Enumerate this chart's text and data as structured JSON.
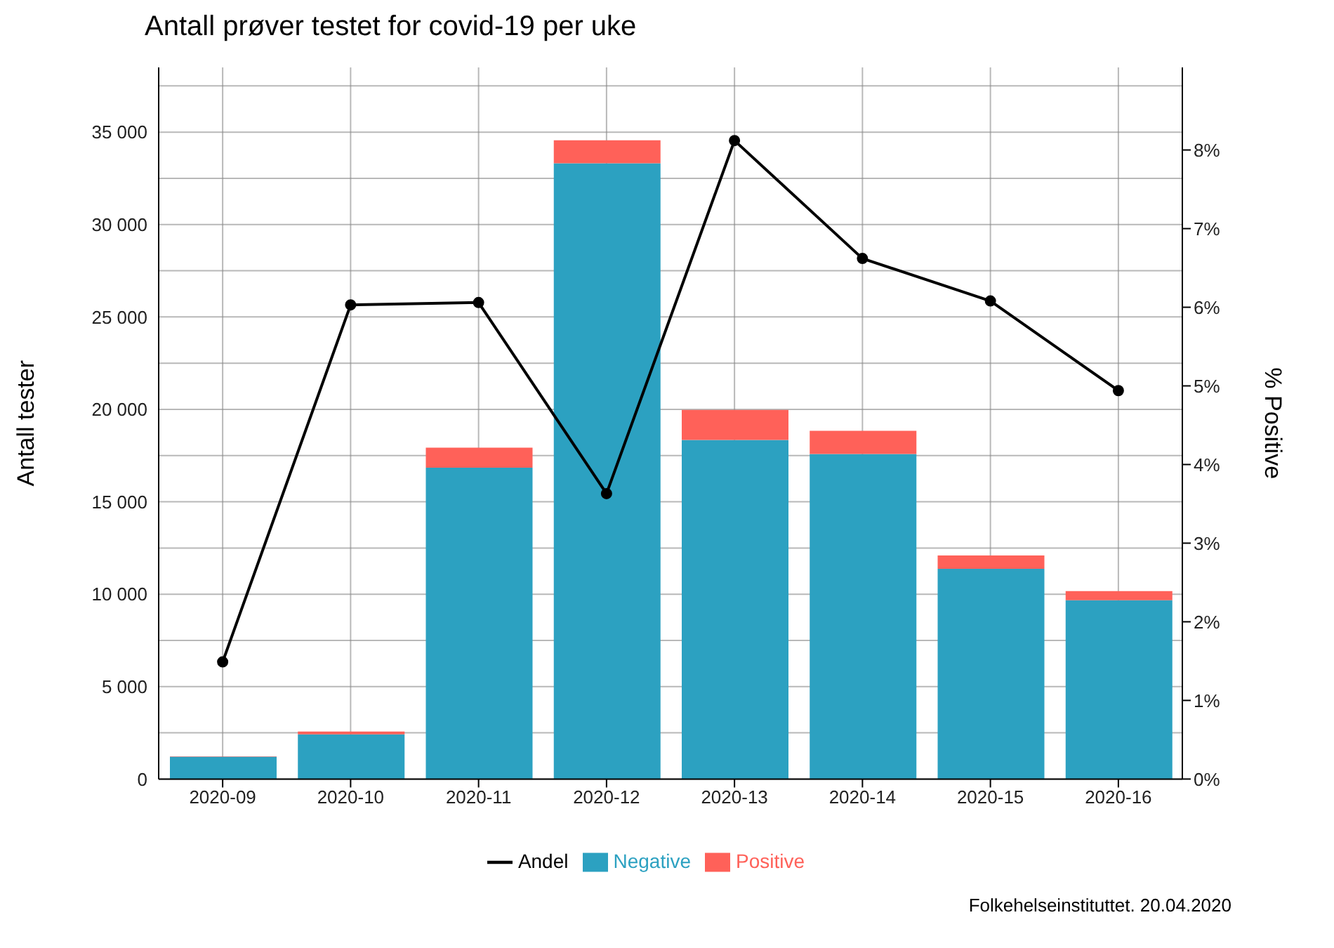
{
  "chart_data": {
    "type": "bar",
    "title": "Antall prøver testet for covid-19 per uke",
    "ylabel": "Antall tester",
    "y2label": "% Positive",
    "categories": [
      "2020-09",
      "2020-10",
      "2020-11",
      "2020-12",
      "2020-13",
      "2020-14",
      "2020-15",
      "2020-16"
    ],
    "stacked": true,
    "series": [
      {
        "name": "Negative",
        "color": "#2ca1c1",
        "values": [
          1210,
          2420,
          16850,
          33310,
          18350,
          17590,
          11370,
          9670
        ]
      },
      {
        "name": "Positive",
        "color": "#ff6159",
        "values": [
          20,
          150,
          1080,
          1250,
          1620,
          1250,
          730,
          500
        ]
      },
      {
        "name": "Andel",
        "type": "line",
        "axis": "y2",
        "color": "#000000",
        "marker": "circle",
        "values": [
          1.49,
          6.03,
          6.06,
          3.63,
          8.12,
          6.62,
          6.08,
          4.94
        ]
      }
    ],
    "ylim": [
      0,
      38500
    ],
    "yticks": [
      {
        "value": 0,
        "label": "0"
      },
      {
        "value": 2500,
        "label": null
      },
      {
        "value": 5000,
        "label": "5 000"
      },
      {
        "value": 7500,
        "label": null
      },
      {
        "value": 10000,
        "label": "10 000"
      },
      {
        "value": 12500,
        "label": null
      },
      {
        "value": 15000,
        "label": "15 000"
      },
      {
        "value": 17500,
        "label": null
      },
      {
        "value": 20000,
        "label": "20 000"
      },
      {
        "value": 22500,
        "label": null
      },
      {
        "value": 25000,
        "label": "25 000"
      },
      {
        "value": 27500,
        "label": null
      },
      {
        "value": 30000,
        "label": "30 000"
      },
      {
        "value": 32500,
        "label": null
      },
      {
        "value": 35000,
        "label": "35 000"
      },
      {
        "value": 37500,
        "label": null
      }
    ],
    "y2lim": [
      0,
      9.05
    ],
    "y2ticks": [
      {
        "value": 0,
        "label": "0%"
      },
      {
        "value": 1,
        "label": "1%"
      },
      {
        "value": 2,
        "label": "2%"
      },
      {
        "value": 3,
        "label": "3%"
      },
      {
        "value": 4,
        "label": "4%"
      },
      {
        "value": 5,
        "label": "5%"
      },
      {
        "value": 6,
        "label": "6%"
      },
      {
        "value": 7,
        "label": "7%"
      },
      {
        "value": 8,
        "label": "8%"
      }
    ],
    "grid": true,
    "legend": "bottom",
    "annotations": [
      "Folkehelseinstituttet. 20.04.2020"
    ]
  }
}
